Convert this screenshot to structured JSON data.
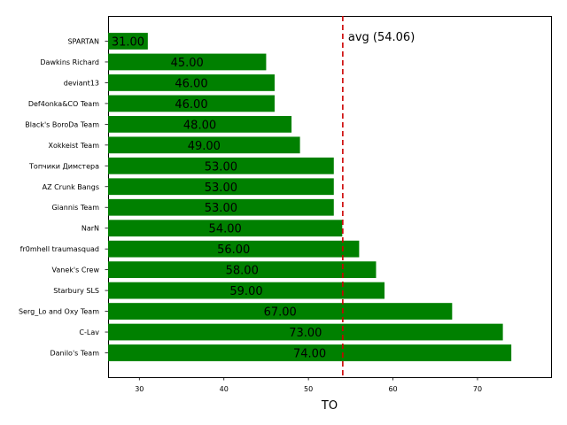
{
  "chart_data": {
    "type": "bar",
    "orientation": "horizontal",
    "categories": [
      "SPARTAN",
      "Dawkins Richard",
      "deviant13",
      "Def4onka&CO Team",
      "Black's BoroDa Team",
      "Xokkeist Team",
      "Топчики Димстера",
      "AZ Crunk Bangs",
      "Giannis Team",
      "NarN",
      "fr0mhell traumasquad",
      "Vanek's Crew",
      "Starbury SLS",
      "Serg_Lo and Oxy Team",
      "C-Lav",
      "Danilo's Team"
    ],
    "values": [
      31,
      45,
      46,
      46,
      48,
      49,
      53,
      53,
      53,
      54,
      56,
      58,
      59,
      67,
      73,
      74
    ],
    "value_labels": [
      "31.00",
      "45.00",
      "46.00",
      "46.00",
      "48.00",
      "49.00",
      "53.00",
      "53.00",
      "53.00",
      "54.00",
      "56.00",
      "58.00",
      "59.00",
      "67.00",
      "73.00",
      "74.00"
    ],
    "xlabel": "TO",
    "ylabel": "",
    "xlim": [
      26.3,
      78.7
    ],
    "xticks": [
      30,
      40,
      50,
      60,
      70
    ],
    "xtick_labels": [
      "30",
      "40",
      "50",
      "60",
      "70"
    ],
    "bar_color": "#008000",
    "average": {
      "value": 54.06,
      "label": "avg (54.06)",
      "color": "#cc0000",
      "style": "dashed"
    },
    "grid": false,
    "legend": "none"
  }
}
